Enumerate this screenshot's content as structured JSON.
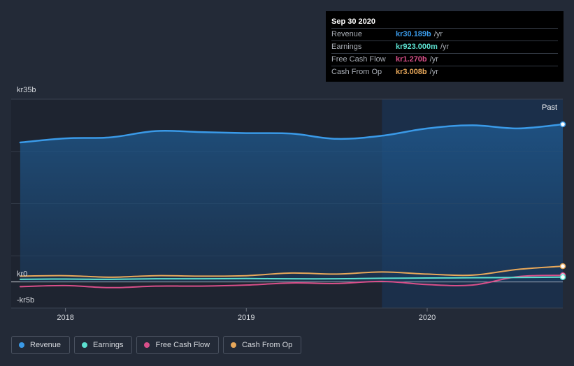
{
  "tooltip": {
    "date": "Sep 30 2020",
    "rows": [
      {
        "label": "Revenue",
        "value": "kr30.189b",
        "unit": "/yr",
        "color": "#3a9ae8"
      },
      {
        "label": "Earnings",
        "value": "kr923.000m",
        "unit": "/yr",
        "color": "#5ce0d0"
      },
      {
        "label": "Free Cash Flow",
        "value": "kr1.270b",
        "unit": "/yr",
        "color": "#d94f8a"
      },
      {
        "label": "Cash From Op",
        "value": "kr3.008b",
        "unit": "/yr",
        "color": "#e8a85a"
      }
    ]
  },
  "past_label": "Past",
  "legend": [
    {
      "label": "Revenue",
      "color": "#3a9ae8"
    },
    {
      "label": "Earnings",
      "color": "#5ce0d0"
    },
    {
      "label": "Free Cash Flow",
      "color": "#d94f8a"
    },
    {
      "label": "Cash From Op",
      "color": "#e8a85a"
    }
  ],
  "chart_data": {
    "type": "area",
    "y_unit": "kr billions",
    "ylim": [
      -5,
      35
    ],
    "y_tick_labels": [
      {
        "value": 35,
        "label": "kr35b"
      },
      {
        "value": 0,
        "label": "kr0"
      },
      {
        "value": -5,
        "label": "-kr5b"
      }
    ],
    "xlim": [
      2017.7,
      2020.75
    ],
    "x_tick_labels": [
      {
        "value": 2018,
        "label": "2018"
      },
      {
        "value": 2019,
        "label": "2019"
      },
      {
        "value": 2020,
        "label": "2020"
      }
    ],
    "highlight_start": 2019.75,
    "x": [
      2017.75,
      2018.0,
      2018.25,
      2018.5,
      2018.75,
      2019.0,
      2019.25,
      2019.5,
      2019.75,
      2020.0,
      2020.25,
      2020.5,
      2020.75
    ],
    "series": [
      {
        "name": "Revenue",
        "color": "#3a9ae8",
        "values": [
          26.7,
          27.5,
          27.7,
          28.9,
          28.7,
          28.5,
          28.4,
          27.4,
          28.0,
          29.4,
          30.0,
          29.4,
          30.189
        ]
      },
      {
        "name": "Earnings",
        "color": "#5ce0d0",
        "values": [
          0.5,
          0.55,
          0.5,
          0.6,
          0.6,
          0.65,
          0.6,
          0.6,
          0.7,
          0.75,
          0.8,
          0.85,
          0.923
        ]
      },
      {
        "name": "Free Cash Flow",
        "color": "#d94f8a",
        "values": [
          -0.9,
          -0.7,
          -1.1,
          -0.8,
          -0.8,
          -0.6,
          -0.2,
          -0.3,
          0.1,
          -0.5,
          -0.6,
          1.0,
          1.27
        ]
      },
      {
        "name": "Cash From Op",
        "color": "#e8a85a",
        "values": [
          1.1,
          1.2,
          0.9,
          1.2,
          1.1,
          1.2,
          1.7,
          1.5,
          1.9,
          1.5,
          1.3,
          2.4,
          3.008
        ]
      }
    ]
  }
}
